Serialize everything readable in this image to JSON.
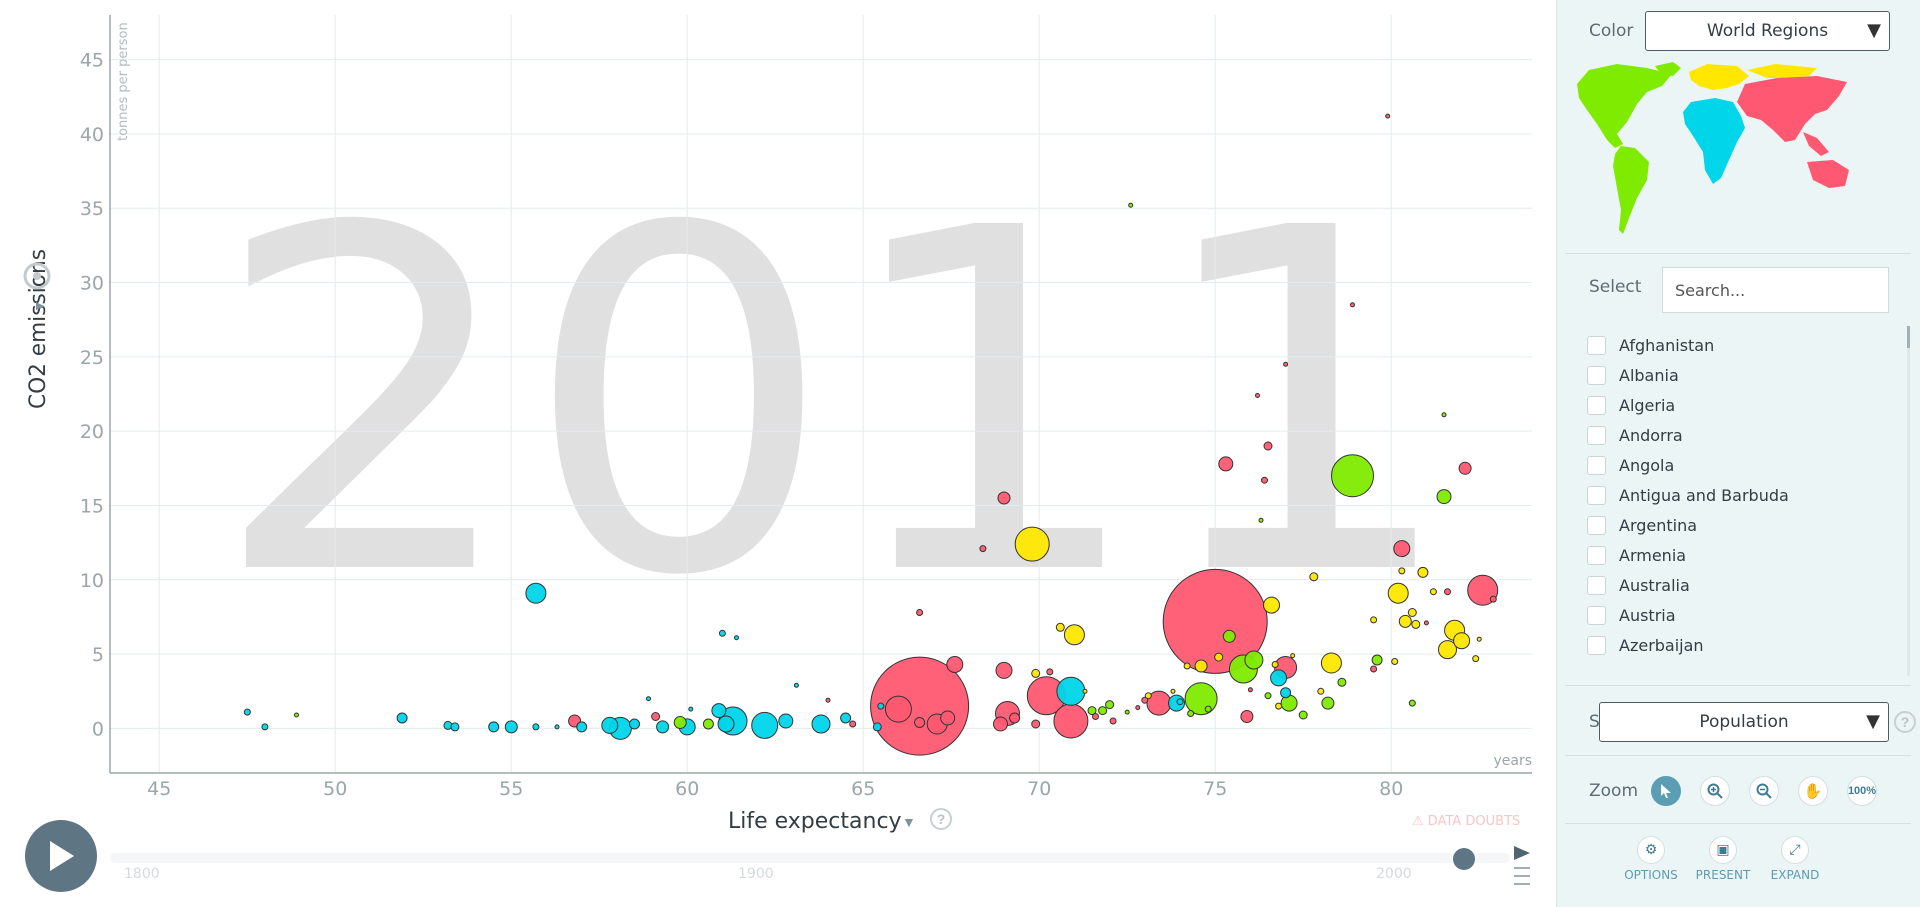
{
  "chart_data": {
    "type": "scatter",
    "year_watermark": "2011",
    "xlabel": "Life expectancy",
    "x_unit": "years",
    "ylabel": "CO2 emissions",
    "y_unit": "tonnes per person",
    "xlim": [
      43.6,
      84.0
    ],
    "ylim": [
      -3,
      48
    ],
    "x_ticks": [
      45,
      50,
      55,
      60,
      65,
      70,
      75,
      80
    ],
    "y_ticks": [
      0,
      5,
      10,
      15,
      20,
      25,
      30,
      35,
      40,
      45
    ],
    "grid": true,
    "colors": {
      "asia": "#ff5872",
      "africa": "#00d5e9",
      "americas": "#7feb00",
      "europe": "#ffe700"
    },
    "points": [
      {
        "x": 47.5,
        "y": 1.1,
        "r": 3,
        "c": "africa"
      },
      {
        "x": 48.0,
        "y": 0.1,
        "r": 3,
        "c": "africa"
      },
      {
        "x": 48.9,
        "y": 0.9,
        "r": 2,
        "c": "americas"
      },
      {
        "x": 51.9,
        "y": 0.7,
        "r": 5,
        "c": "africa"
      },
      {
        "x": 53.2,
        "y": 0.2,
        "r": 4,
        "c": "africa"
      },
      {
        "x": 53.4,
        "y": 0.1,
        "r": 4,
        "c": "africa"
      },
      {
        "x": 54.5,
        "y": 0.1,
        "r": 5,
        "c": "africa"
      },
      {
        "x": 55.0,
        "y": 0.1,
        "r": 6,
        "c": "africa"
      },
      {
        "x": 55.7,
        "y": 0.1,
        "r": 3,
        "c": "africa"
      },
      {
        "x": 55.7,
        "y": 9.1,
        "r": 10,
        "c": "africa"
      },
      {
        "x": 56.3,
        "y": 0.1,
        "r": 2,
        "c": "africa"
      },
      {
        "x": 56.8,
        "y": 0.5,
        "r": 6,
        "c": "asia"
      },
      {
        "x": 57.0,
        "y": 0.1,
        "r": 5,
        "c": "africa"
      },
      {
        "x": 57.8,
        "y": 0.2,
        "r": 8,
        "c": "africa"
      },
      {
        "x": 58.1,
        "y": 0.0,
        "r": 11,
        "c": "africa"
      },
      {
        "x": 58.5,
        "y": 0.3,
        "r": 5,
        "c": "africa"
      },
      {
        "x": 58.9,
        "y": 2.0,
        "r": 2,
        "c": "africa"
      },
      {
        "x": 59.1,
        "y": 0.8,
        "r": 4,
        "c": "asia"
      },
      {
        "x": 59.3,
        "y": 0.1,
        "r": 6,
        "c": "africa"
      },
      {
        "x": 59.8,
        "y": 0.4,
        "r": 6,
        "c": "americas"
      },
      {
        "x": 60.0,
        "y": 0.1,
        "r": 8,
        "c": "africa"
      },
      {
        "x": 60.1,
        "y": 1.3,
        "r": 2,
        "c": "africa"
      },
      {
        "x": 60.6,
        "y": 0.3,
        "r": 5,
        "c": "americas"
      },
      {
        "x": 60.9,
        "y": 1.2,
        "r": 7,
        "c": "africa"
      },
      {
        "x": 61.0,
        "y": 6.4,
        "r": 3,
        "c": "africa"
      },
      {
        "x": 61.1,
        "y": 0.3,
        "r": 8,
        "c": "africa"
      },
      {
        "x": 61.3,
        "y": 0.5,
        "r": 14,
        "c": "africa"
      },
      {
        "x": 61.4,
        "y": 6.1,
        "r": 2,
        "c": "africa"
      },
      {
        "x": 62.2,
        "y": 0.2,
        "r": 13,
        "c": "africa"
      },
      {
        "x": 62.8,
        "y": 0.5,
        "r": 7,
        "c": "africa"
      },
      {
        "x": 63.1,
        "y": 2.9,
        "r": 2,
        "c": "africa"
      },
      {
        "x": 63.8,
        "y": 0.3,
        "r": 9,
        "c": "africa"
      },
      {
        "x": 64.0,
        "y": 1.9,
        "r": 2,
        "c": "asia"
      },
      {
        "x": 64.5,
        "y": 0.7,
        "r": 5,
        "c": "africa"
      },
      {
        "x": 64.7,
        "y": 0.3,
        "r": 3,
        "c": "asia"
      },
      {
        "x": 65.4,
        "y": 0.1,
        "r": 4,
        "c": "africa"
      },
      {
        "x": 65.5,
        "y": 1.5,
        "r": 3,
        "c": "africa"
      },
      {
        "x": 66.0,
        "y": 1.3,
        "r": 13,
        "c": "asia"
      },
      {
        "x": 66.6,
        "y": 1.5,
        "r": 49,
        "c": "asia"
      },
      {
        "x": 66.6,
        "y": 0.4,
        "r": 5,
        "c": "asia"
      },
      {
        "x": 66.6,
        "y": 7.8,
        "r": 3,
        "c": "asia"
      },
      {
        "x": 67.1,
        "y": 0.3,
        "r": 10,
        "c": "asia"
      },
      {
        "x": 67.4,
        "y": 0.7,
        "r": 7,
        "c": "asia"
      },
      {
        "x": 67.6,
        "y": 4.3,
        "r": 8,
        "c": "asia"
      },
      {
        "x": 68.4,
        "y": 12.1,
        "r": 3,
        "c": "asia"
      },
      {
        "x": 68.9,
        "y": 0.3,
        "r": 7,
        "c": "asia"
      },
      {
        "x": 69.0,
        "y": 15.5,
        "r": 6,
        "c": "asia"
      },
      {
        "x": 69.0,
        "y": 3.9,
        "r": 8,
        "c": "asia"
      },
      {
        "x": 69.1,
        "y": 1.0,
        "r": 12,
        "c": "asia"
      },
      {
        "x": 69.3,
        "y": 0.7,
        "r": 5,
        "c": "asia"
      },
      {
        "x": 69.8,
        "y": 12.4,
        "r": 17,
        "c": "europe"
      },
      {
        "x": 69.9,
        "y": 3.7,
        "r": 4,
        "c": "europe"
      },
      {
        "x": 69.9,
        "y": 0.3,
        "r": 4,
        "c": "asia"
      },
      {
        "x": 70.2,
        "y": 2.2,
        "r": 19,
        "c": "asia"
      },
      {
        "x": 70.3,
        "y": 3.8,
        "r": 3,
        "c": "asia"
      },
      {
        "x": 70.6,
        "y": 6.8,
        "r": 4,
        "c": "europe"
      },
      {
        "x": 70.9,
        "y": 2.5,
        "r": 14,
        "c": "africa"
      },
      {
        "x": 70.9,
        "y": 0.5,
        "r": 17,
        "c": "asia"
      },
      {
        "x": 71.0,
        "y": 6.3,
        "r": 10,
        "c": "europe"
      },
      {
        "x": 71.3,
        "y": 2.5,
        "r": 2,
        "c": "europe"
      },
      {
        "x": 71.5,
        "y": 1.2,
        "r": 4,
        "c": "americas"
      },
      {
        "x": 71.6,
        "y": 0.8,
        "r": 3,
        "c": "asia"
      },
      {
        "x": 71.8,
        "y": 1.2,
        "r": 4,
        "c": "americas"
      },
      {
        "x": 72.0,
        "y": 1.6,
        "r": 4,
        "c": "americas"
      },
      {
        "x": 72.1,
        "y": 0.5,
        "r": 3,
        "c": "asia"
      },
      {
        "x": 72.5,
        "y": 1.1,
        "r": 2,
        "c": "americas"
      },
      {
        "x": 72.6,
        "y": 35.2,
        "r": 2,
        "c": "americas"
      },
      {
        "x": 72.8,
        "y": 1.4,
        "r": 2,
        "c": "asia"
      },
      {
        "x": 73.0,
        "y": 1.9,
        "r": 3,
        "c": "asia"
      },
      {
        "x": 73.1,
        "y": 2.2,
        "r": 3,
        "c": "europe"
      },
      {
        "x": 73.4,
        "y": 1.7,
        "r": 12,
        "c": "asia"
      },
      {
        "x": 73.8,
        "y": 2.5,
        "r": 2,
        "c": "europe"
      },
      {
        "x": 73.9,
        "y": 1.7,
        "r": 8,
        "c": "africa"
      },
      {
        "x": 74.0,
        "y": 1.8,
        "r": 3,
        "c": "africa"
      },
      {
        "x": 74.2,
        "y": 4.2,
        "r": 3,
        "c": "europe"
      },
      {
        "x": 74.3,
        "y": 1.0,
        "r": 3,
        "c": "americas"
      },
      {
        "x": 74.6,
        "y": 2.0,
        "r": 16,
        "c": "americas"
      },
      {
        "x": 74.6,
        "y": 4.2,
        "r": 6,
        "c": "europe"
      },
      {
        "x": 74.8,
        "y": 1.3,
        "r": 3,
        "c": "americas"
      },
      {
        "x": 75.0,
        "y": 7.2,
        "r": 52,
        "c": "asia"
      },
      {
        "x": 75.3,
        "y": 17.8,
        "r": 7,
        "c": "asia"
      },
      {
        "x": 75.4,
        "y": 6.2,
        "r": 6,
        "c": "americas"
      },
      {
        "x": 75.1,
        "y": 4.8,
        "r": 4,
        "c": "europe"
      },
      {
        "x": 75.8,
        "y": 4.0,
        "r": 14,
        "c": "americas"
      },
      {
        "x": 75.9,
        "y": 0.8,
        "r": 6,
        "c": "asia"
      },
      {
        "x": 76.0,
        "y": 2.6,
        "r": 2,
        "c": "asia"
      },
      {
        "x": 76.1,
        "y": 4.6,
        "r": 9,
        "c": "americas"
      },
      {
        "x": 76.2,
        "y": 22.4,
        "r": 2,
        "c": "asia"
      },
      {
        "x": 76.3,
        "y": 14.0,
        "r": 2,
        "c": "americas"
      },
      {
        "x": 76.4,
        "y": 16.7,
        "r": 3,
        "c": "asia"
      },
      {
        "x": 76.5,
        "y": 19.0,
        "r": 4,
        "c": "asia"
      },
      {
        "x": 76.5,
        "y": 2.2,
        "r": 3,
        "c": "americas"
      },
      {
        "x": 76.6,
        "y": 8.3,
        "r": 8,
        "c": "europe"
      },
      {
        "x": 76.7,
        "y": 4.3,
        "r": 3,
        "c": "europe"
      },
      {
        "x": 76.8,
        "y": 3.4,
        "r": 8,
        "c": "africa"
      },
      {
        "x": 76.8,
        "y": 1.5,
        "r": 3,
        "c": "europe"
      },
      {
        "x": 77.0,
        "y": 2.4,
        "r": 5,
        "c": "africa"
      },
      {
        "x": 77.0,
        "y": 4.1,
        "r": 11,
        "c": "asia"
      },
      {
        "x": 77.0,
        "y": 24.5,
        "r": 2,
        "c": "asia"
      },
      {
        "x": 77.1,
        "y": 1.7,
        "r": 8,
        "c": "americas"
      },
      {
        "x": 77.2,
        "y": 4.9,
        "r": 2,
        "c": "europe"
      },
      {
        "x": 77.5,
        "y": 0.9,
        "r": 4,
        "c": "americas"
      },
      {
        "x": 77.8,
        "y": 10.2,
        "r": 4,
        "c": "europe"
      },
      {
        "x": 78.0,
        "y": 2.5,
        "r": 3,
        "c": "europe"
      },
      {
        "x": 78.2,
        "y": 1.7,
        "r": 6,
        "c": "americas"
      },
      {
        "x": 78.3,
        "y": 4.4,
        "r": 10,
        "c": "europe"
      },
      {
        "x": 78.6,
        "y": 3.1,
        "r": 4,
        "c": "americas"
      },
      {
        "x": 78.9,
        "y": 17.0,
        "r": 21,
        "c": "americas"
      },
      {
        "x": 78.9,
        "y": 28.5,
        "r": 2,
        "c": "asia"
      },
      {
        "x": 79.5,
        "y": 7.3,
        "r": 3,
        "c": "europe"
      },
      {
        "x": 79.5,
        "y": 4.0,
        "r": 3,
        "c": "asia"
      },
      {
        "x": 79.6,
        "y": 4.6,
        "r": 5,
        "c": "americas"
      },
      {
        "x": 79.9,
        "y": 41.2,
        "r": 2,
        "c": "asia"
      },
      {
        "x": 80.1,
        "y": 4.5,
        "r": 3,
        "c": "europe"
      },
      {
        "x": 80.2,
        "y": 9.1,
        "r": 10,
        "c": "europe"
      },
      {
        "x": 80.3,
        "y": 10.6,
        "r": 3,
        "c": "europe"
      },
      {
        "x": 80.3,
        "y": 12.1,
        "r": 8,
        "c": "asia"
      },
      {
        "x": 80.4,
        "y": 7.2,
        "r": 6,
        "c": "europe"
      },
      {
        "x": 80.6,
        "y": 7.8,
        "r": 4,
        "c": "europe"
      },
      {
        "x": 80.6,
        "y": 1.7,
        "r": 3,
        "c": "americas"
      },
      {
        "x": 80.7,
        "y": 7.0,
        "r": 4,
        "c": "europe"
      },
      {
        "x": 80.9,
        "y": 10.5,
        "r": 5,
        "c": "europe"
      },
      {
        "x": 81.0,
        "y": 7.1,
        "r": 2,
        "c": "asia"
      },
      {
        "x": 81.2,
        "y": 9.2,
        "r": 3,
        "c": "europe"
      },
      {
        "x": 81.5,
        "y": 15.6,
        "r": 7,
        "c": "americas"
      },
      {
        "x": 81.5,
        "y": 21.1,
        "r": 2,
        "c": "americas"
      },
      {
        "x": 81.6,
        "y": 5.3,
        "r": 9,
        "c": "europe"
      },
      {
        "x": 81.6,
        "y": 9.2,
        "r": 3,
        "c": "asia"
      },
      {
        "x": 81.8,
        "y": 6.6,
        "r": 10,
        "c": "europe"
      },
      {
        "x": 82.0,
        "y": 5.9,
        "r": 8,
        "c": "europe"
      },
      {
        "x": 82.1,
        "y": 17.5,
        "r": 6,
        "c": "asia"
      },
      {
        "x": 82.4,
        "y": 4.7,
        "r": 3,
        "c": "europe"
      },
      {
        "x": 82.5,
        "y": 6.0,
        "r": 2,
        "c": "europe"
      },
      {
        "x": 82.6,
        "y": 9.3,
        "r": 15,
        "c": "asia"
      },
      {
        "x": 82.9,
        "y": 8.7,
        "r": 3,
        "c": "asia"
      }
    ]
  },
  "controls": {
    "data_doubts": "DATA DOUBTS",
    "timeline_labels": [
      "1800",
      "1900",
      "2000"
    ]
  },
  "sidebar": {
    "color_label": "Color",
    "color_value": "World Regions",
    "select_label": "Select",
    "search_placeholder": "Search...",
    "countries": [
      "Afghanistan",
      "Albania",
      "Algeria",
      "Andorra",
      "Angola",
      "Antigua and Barbuda",
      "Argentina",
      "Armenia",
      "Australia",
      "Austria",
      "Azerbaijan"
    ],
    "size_label": "Size",
    "size_value": "Population",
    "zoom_label": "Zoom",
    "zoom_buttons": [
      "cursor-icon",
      "zoom-in-icon",
      "zoom-out-icon",
      "hand-icon",
      "100%"
    ],
    "options_label": "OPTIONS",
    "present_label": "PRESENT",
    "expand_label": "EXPAND"
  }
}
